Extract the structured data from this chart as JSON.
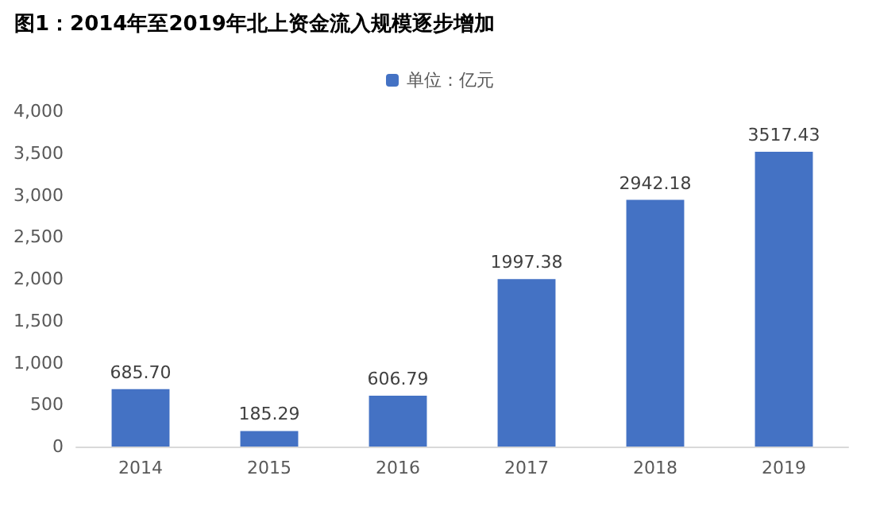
{
  "chart_data": {
    "type": "bar",
    "title": "图1：2014年至2019年北上资金流入规模逐步增加",
    "categories": [
      "2014",
      "2015",
      "2016",
      "2017",
      "2018",
      "2019"
    ],
    "series": [
      {
        "name": "单位：亿元",
        "color": "#4472c4",
        "values": [
          685.7,
          185.29,
          606.79,
          1997.38,
          2942.18,
          3517.43
        ],
        "value_labels": [
          "685.70",
          "185.29",
          "606.79",
          "1997.38",
          "2942.18",
          "3517.43"
        ]
      }
    ],
    "ylim": [
      0,
      4000
    ],
    "yticks": [
      0,
      500,
      {
        "value": 1000,
        "label": "1,000"
      },
      {
        "value": 1500,
        "label": "1,500"
      },
      {
        "value": 2000,
        "label": "2,000"
      },
      {
        "value": 2500,
        "label": "2,500"
      },
      {
        "value": 3000,
        "label": "3,000"
      },
      {
        "value": 3500,
        "label": "3,500"
      },
      {
        "value": 4000,
        "label": "4,000"
      }
    ],
    "grid": false,
    "legend": "top"
  }
}
